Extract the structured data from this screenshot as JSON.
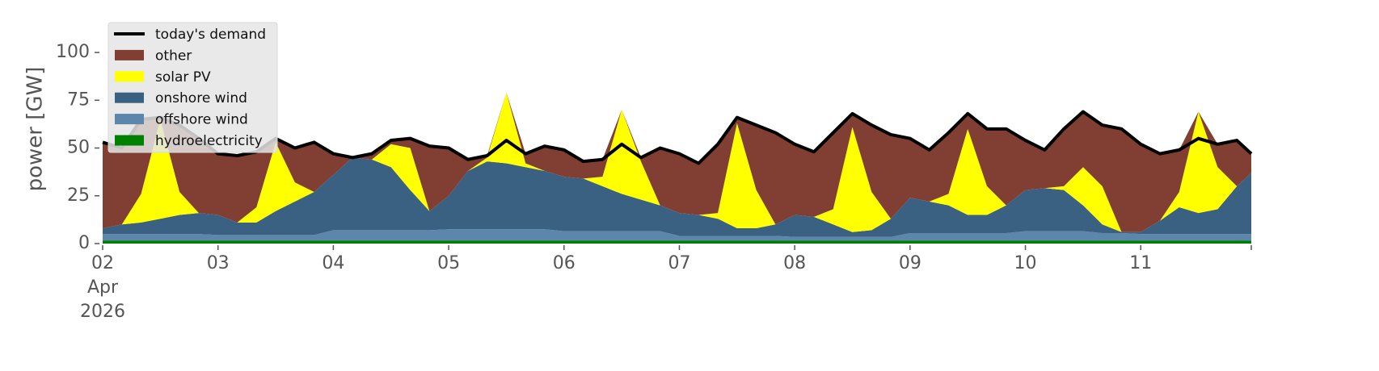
{
  "chart_data": {
    "type": "stacked-area",
    "ylabel": "power [GW]",
    "legend": "upper left",
    "xlim": [
      "2026-04-02 00:00",
      "2026-04-11 23:00"
    ],
    "xticks": [
      {
        "value": "2026-04-02 00:00",
        "label": "02\nApr\n2026"
      },
      {
        "value": "2026-04-03 00:00",
        "label": "03"
      },
      {
        "value": "2026-04-04 00:00",
        "label": "04"
      },
      {
        "value": "2026-04-05 00:00",
        "label": "05"
      },
      {
        "value": "2026-04-06 00:00",
        "label": "06"
      },
      {
        "value": "2026-04-07 00:00",
        "label": "07"
      },
      {
        "value": "2026-04-08 00:00",
        "label": "08"
      },
      {
        "value": "2026-04-09 00:00",
        "label": "09"
      },
      {
        "value": "2026-04-10 00:00",
        "label": "10"
      },
      {
        "value": "2026-04-11 00:00",
        "label": "11"
      }
    ],
    "ylim": [
      0,
      115
    ],
    "yticks": [
      0,
      25,
      50,
      75,
      100
    ],
    "x": [
      "2026-04-02 00:00",
      "2026-04-02 04:00",
      "2026-04-02 08:00",
      "2026-04-02 12:00",
      "2026-04-02 16:00",
      "2026-04-02 20:00",
      "2026-04-03 00:00",
      "2026-04-03 04:00",
      "2026-04-03 08:00",
      "2026-04-03 12:00",
      "2026-04-03 16:00",
      "2026-04-03 20:00",
      "2026-04-04 00:00",
      "2026-04-04 04:00",
      "2026-04-04 08:00",
      "2026-04-04 12:00",
      "2026-04-04 16:00",
      "2026-04-04 20:00",
      "2026-04-05 00:00",
      "2026-04-05 04:00",
      "2026-04-05 08:00",
      "2026-04-05 12:00",
      "2026-04-05 16:00",
      "2026-04-05 20:00",
      "2026-04-06 00:00",
      "2026-04-06 04:00",
      "2026-04-06 08:00",
      "2026-04-06 12:00",
      "2026-04-06 16:00",
      "2026-04-06 20:00",
      "2026-04-07 00:00",
      "2026-04-07 04:00",
      "2026-04-07 08:00",
      "2026-04-07 12:00",
      "2026-04-07 16:00",
      "2026-04-07 20:00",
      "2026-04-08 00:00",
      "2026-04-08 04:00",
      "2026-04-08 08:00",
      "2026-04-08 12:00",
      "2026-04-08 16:00",
      "2026-04-08 20:00",
      "2026-04-09 00:00",
      "2026-04-09 04:00",
      "2026-04-09 08:00",
      "2026-04-09 12:00",
      "2026-04-09 16:00",
      "2026-04-09 20:00",
      "2026-04-10 00:00",
      "2026-04-10 04:00",
      "2026-04-10 08:00",
      "2026-04-10 12:00",
      "2026-04-10 16:00",
      "2026-04-10 20:00",
      "2026-04-11 00:00",
      "2026-04-11 04:00",
      "2026-04-11 08:00",
      "2026-04-11 12:00",
      "2026-04-11 16:00",
      "2026-04-11 20:00",
      "2026-04-11 23:00"
    ],
    "series": [
      {
        "name": "today's demand",
        "kind": "line",
        "color": "#000000",
        "values": [
          53,
          50,
          65,
          66,
          62,
          55,
          47,
          46,
          48,
          55,
          50,
          53,
          47,
          45,
          47,
          54,
          55,
          51,
          50,
          44,
          46,
          54,
          47,
          51,
          49,
          43,
          44,
          52,
          45,
          50,
          47,
          42,
          52,
          66,
          62,
          58,
          52,
          48,
          58,
          68,
          62,
          57,
          55,
          49,
          58,
          68,
          60,
          60,
          54,
          49,
          60,
          69,
          62,
          60,
          52,
          47,
          49,
          55,
          52,
          54,
          47
        ]
      },
      {
        "name": "other",
        "kind": "area",
        "color": "#803f32",
        "values": [
          45,
          40,
          39,
          1,
          35,
          39,
          32,
          35,
          29,
          2,
          18,
          26,
          11,
          0,
          3,
          2,
          5,
          34,
          25,
          6,
          1,
          0,
          5,
          13,
          14,
          9,
          9,
          0,
          2,
          30,
          31,
          27,
          36,
          3,
          34,
          48,
          37,
          34,
          40,
          7,
          35,
          44,
          31,
          27,
          32,
          8,
          30,
          40,
          26,
          20,
          30,
          29,
          32,
          54,
          46,
          35,
          22,
          0,
          12,
          24,
          10
        ]
      },
      {
        "name": "solar PV",
        "kind": "area",
        "color": "#ffff00",
        "values": [
          0,
          0,
          15,
          52,
          12,
          0,
          0,
          0,
          8,
          36,
          10,
          0,
          0,
          0,
          0,
          12,
          22,
          0,
          0,
          0,
          2,
          37,
          2,
          0,
          0,
          0,
          5,
          44,
          20,
          0,
          0,
          0,
          3,
          55,
          20,
          0,
          0,
          0,
          8,
          55,
          20,
          0,
          0,
          0,
          6,
          45,
          15,
          0,
          0,
          0,
          2,
          20,
          20,
          0,
          0,
          0,
          8,
          53,
          22,
          0,
          0
        ]
      },
      {
        "name": "onshore wind",
        "kind": "area",
        "color": "#3b6182",
        "values": [
          3,
          5,
          6,
          8,
          10,
          11,
          10.5,
          6.5,
          6.5,
          12.5,
          17.5,
          22.5,
          29,
          38,
          37,
          33,
          21,
          10,
          17.5,
          30.5,
          35.5,
          34.5,
          32.5,
          30.5,
          28.5,
          27.5,
          23.5,
          19.5,
          16.5,
          13.5,
          12,
          11,
          9,
          4,
          4,
          6,
          11.5,
          10.5,
          6.5,
          2.5,
          3.5,
          9.5,
          18.5,
          16.5,
          14.5,
          9.5,
          9.5,
          14.5,
          21.5,
          22.5,
          21.5,
          13.5,
          4.5,
          0.5,
          1,
          7,
          14,
          11,
          13,
          25,
          32
        ]
      },
      {
        "name": "offshore wind",
        "kind": "area",
        "color": "#5d86ab",
        "values": [
          3.5,
          3.5,
          3.5,
          3.5,
          3.5,
          3.5,
          3,
          3,
          3,
          3,
          3,
          3,
          5.5,
          5.5,
          5.5,
          5.5,
          5.5,
          5.5,
          6,
          6,
          6,
          6,
          6,
          6,
          5,
          5,
          5,
          5,
          5,
          5,
          2.5,
          2.5,
          2.5,
          2.5,
          2.5,
          2.5,
          2,
          2,
          2,
          2,
          2,
          2,
          4,
          4,
          4,
          4,
          4,
          4,
          5,
          5,
          5,
          5,
          4,
          4,
          3.5,
          3.5,
          3.5,
          3.5,
          3.5,
          3.5,
          3.5
        ]
      },
      {
        "name": "hydroelectricity",
        "kind": "area",
        "color": "#008000",
        "values": [
          1.5,
          1.5,
          1.5,
          1.5,
          1.5,
          1.5,
          1.5,
          1.5,
          1.5,
          1.5,
          1.5,
          1.5,
          1.5,
          1.5,
          1.5,
          1.5,
          1.5,
          1.5,
          1.5,
          1.5,
          1.5,
          1.5,
          1.5,
          1.5,
          1.5,
          1.5,
          1.5,
          1.5,
          1.5,
          1.5,
          1.5,
          1.5,
          1.5,
          1.5,
          1.5,
          1.5,
          1.5,
          1.5,
          1.5,
          1.5,
          1.5,
          1.5,
          1.5,
          1.5,
          1.5,
          1.5,
          1.5,
          1.5,
          1.5,
          1.5,
          1.5,
          1.5,
          1.5,
          1.5,
          1.5,
          1.5,
          1.5,
          1.5,
          1.5,
          1.5,
          1.5
        ]
      }
    ]
  }
}
